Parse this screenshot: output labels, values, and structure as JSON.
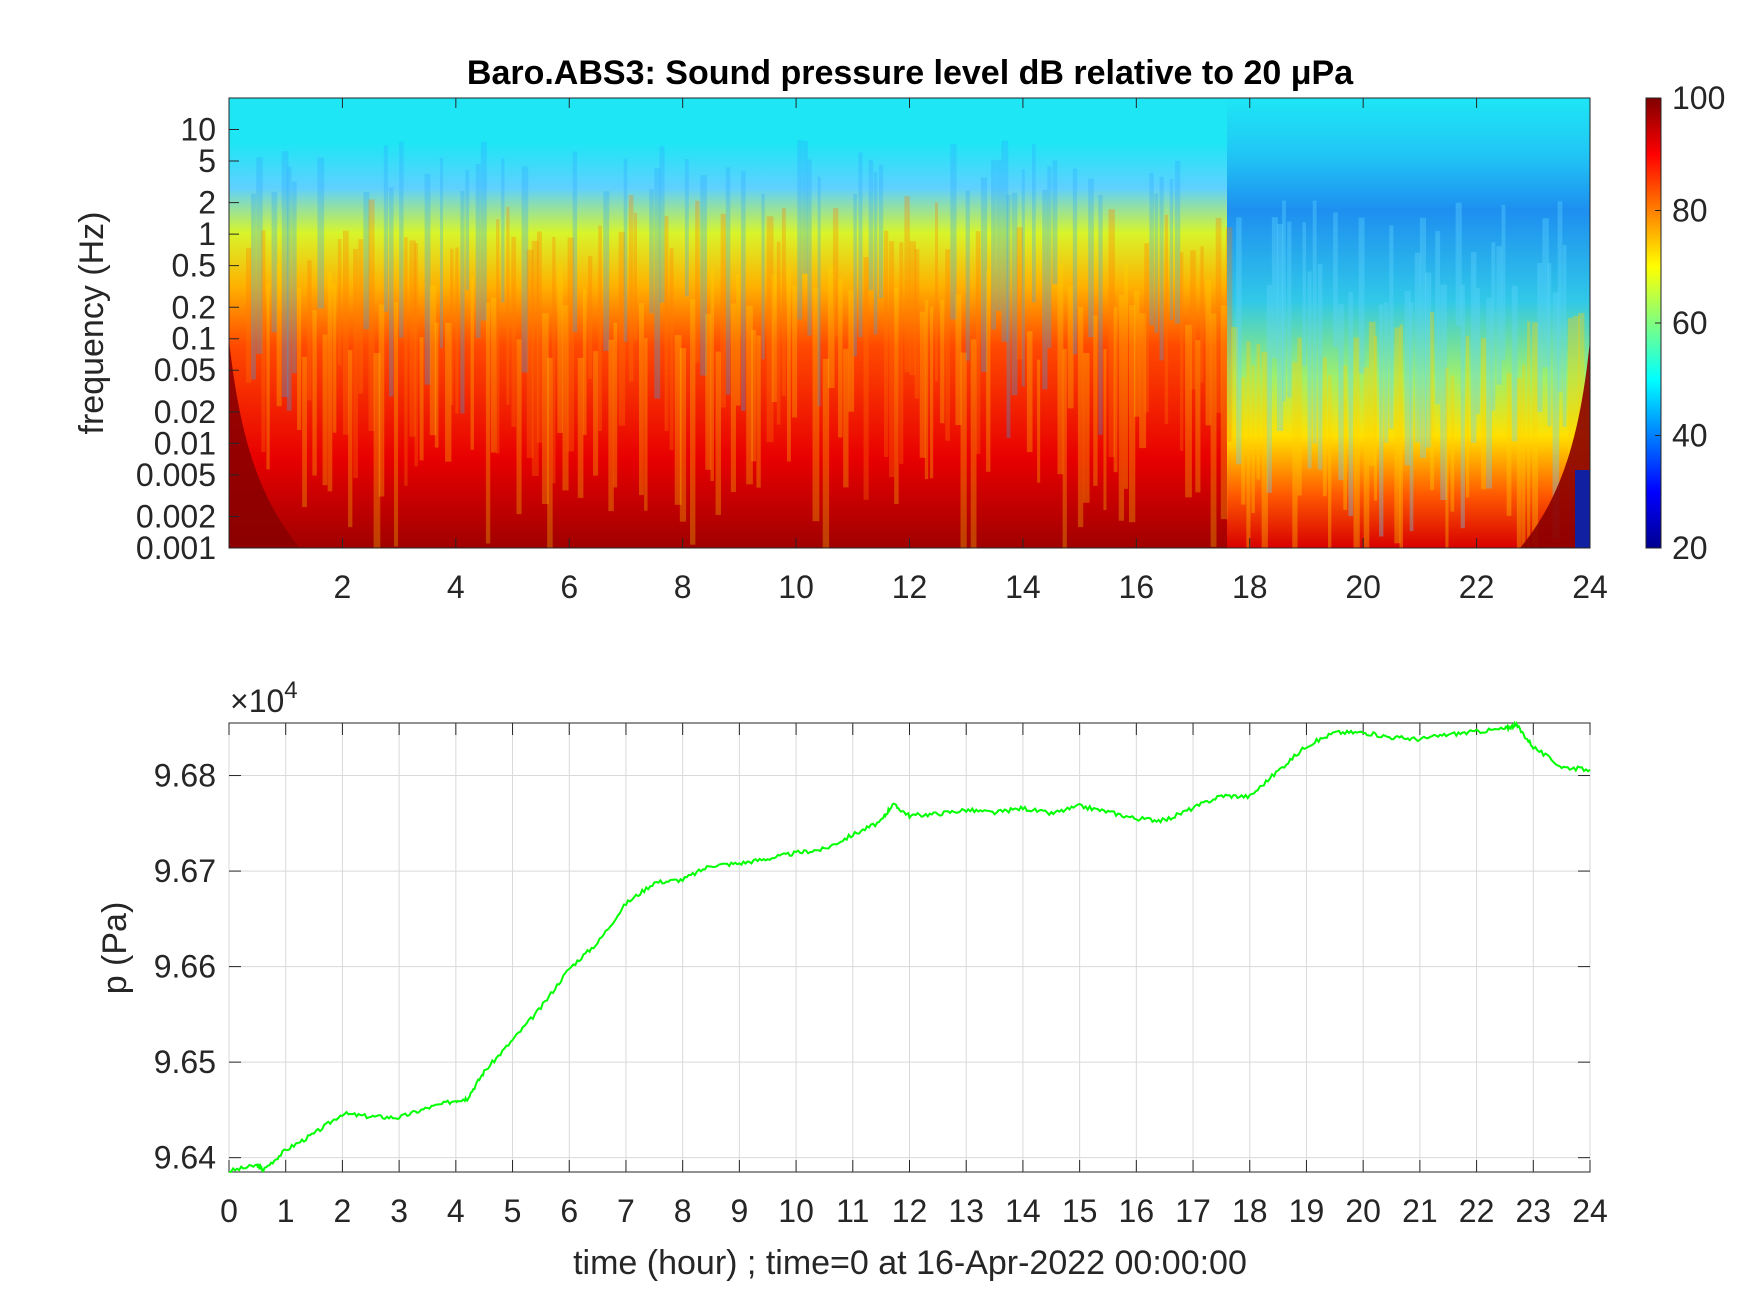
{
  "chart_data": [
    {
      "type": "heatmap",
      "title": "Baro.ABS3: Sound pressure level dB relative to 20 μPa",
      "ylabel": "frequency (Hz)",
      "xlabel": "",
      "x_ticks": [
        "2",
        "4",
        "6",
        "8",
        "10",
        "12",
        "14",
        "16",
        "18",
        "20",
        "22",
        "24"
      ],
      "y_ticks": [
        "10",
        "5",
        "2",
        "1",
        "0.5",
        "0.2",
        "0.1",
        "0.05",
        "0.02",
        "0.01",
        "0.005",
        "0.002",
        "0.001"
      ],
      "xlim": [
        0,
        24
      ],
      "ylim": [
        0.001,
        20
      ],
      "y_scale": "log",
      "colormap": "jet",
      "color_range": [
        20,
        100
      ],
      "colorbar_ticks": [
        "100",
        "80",
        "60",
        "40",
        "20"
      ],
      "description_values": {
        "high_freq_level_db": 50,
        "broadband_active_period_hours": [
          0.3,
          17.6
        ],
        "quiet_period_hours": [
          17.6,
          24
        ],
        "low_freq_level_db": 90
      }
    },
    {
      "type": "line",
      "ylabel": "p (Pa)",
      "xlabel": "time (hour) ; time=0 at 16-Apr-2022 00:00:00",
      "y_multiplier": "×10",
      "y_multiplier_exp": "4",
      "x_ticks": [
        "0",
        "1",
        "2",
        "3",
        "4",
        "5",
        "6",
        "7",
        "8",
        "9",
        "10",
        "11",
        "12",
        "13",
        "14",
        "15",
        "16",
        "17",
        "18",
        "19",
        "20",
        "21",
        "22",
        "23",
        "24"
      ],
      "y_ticks": [
        "9.68",
        "9.67",
        "9.66",
        "9.65",
        "9.64"
      ],
      "xlim": [
        0,
        24
      ],
      "ylim": [
        9.6385,
        9.6855
      ],
      "grid": true,
      "series": [
        {
          "color": "#00ff00",
          "x": [
            0,
            0.5,
            0.6,
            1,
            1.5,
            2,
            2.5,
            3,
            3.5,
            4,
            4.2,
            4.5,
            5,
            5.5,
            6,
            6.5,
            7,
            7.5,
            8,
            8.5,
            9,
            9.5,
            10,
            10.5,
            11,
            11.5,
            11.7,
            12,
            12.5,
            13,
            13.5,
            14,
            14.5,
            15,
            15.5,
            16,
            16.5,
            17,
            17.5,
            18,
            18.5,
            19,
            19.5,
            20,
            20.5,
            21,
            21.5,
            22,
            22.5,
            22.7,
            23,
            23.5,
            24
          ],
          "y": [
            9.6386,
            9.6392,
            9.6387,
            9.6408,
            9.6425,
            9.6446,
            9.6443,
            9.6442,
            9.6452,
            9.646,
            9.6462,
            9.649,
            9.6523,
            9.6557,
            9.6598,
            9.6625,
            9.6666,
            9.6688,
            9.6691,
            9.6706,
            9.6708,
            9.6713,
            9.6719,
            9.6723,
            9.6738,
            9.6752,
            9.677,
            9.6758,
            9.676,
            9.6764,
            9.6761,
            9.6766,
            9.676,
            9.6768,
            9.6762,
            9.6755,
            9.6753,
            9.6766,
            9.6779,
            9.6778,
            9.6805,
            9.6831,
            9.6845,
            9.6845,
            9.684,
            9.6838,
            9.6843,
            9.6846,
            9.6849,
            9.6853,
            9.683,
            9.6809,
            9.6806
          ]
        }
      ]
    }
  ]
}
